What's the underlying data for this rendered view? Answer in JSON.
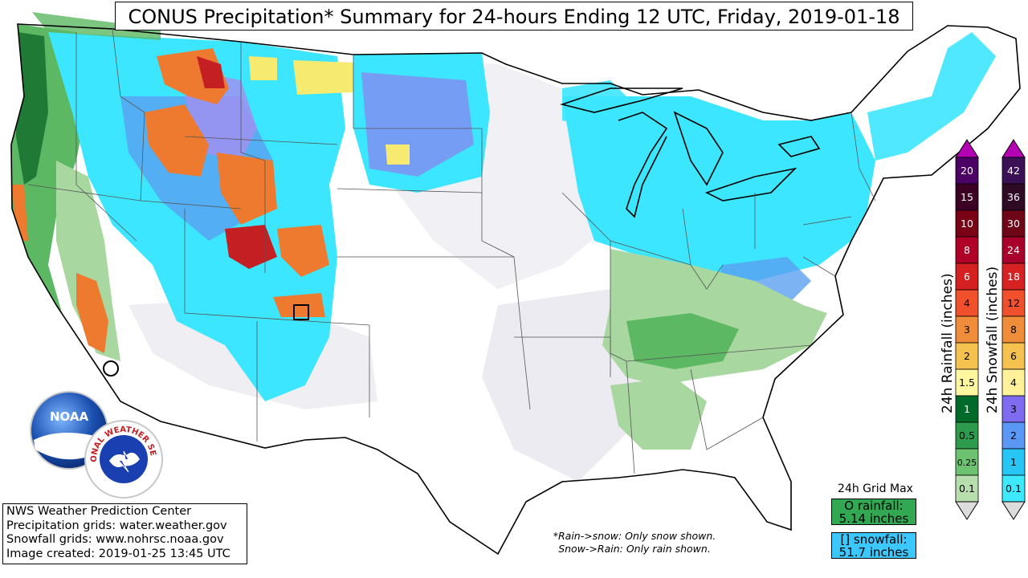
{
  "title": "CONUS Precipitation* Summary for 24-hours Ending 12 UTC, Friday, 2019-01-18",
  "credits": {
    "line1": "NWS Weather Prediction Center",
    "line2": "Precipitation grids: water.weather.gov",
    "line3": "Snowfall grids: www.nohrsc.noaa.gov",
    "line4": "Image created: 2019-01-25 13:45 UTC"
  },
  "footnote": {
    "line1": "*Rain->snow: Only snow shown.",
    "line2": "Snow->Rain: Only rain shown."
  },
  "grid_max": {
    "title": "24h Grid Max",
    "rain_label": "O rainfall:",
    "rain_value": "5.14 inches",
    "snow_label": "[] snowfall:",
    "snow_value": "51.7 inches"
  },
  "logos": {
    "noaa": "NOAA",
    "nws": "NATIONAL WEATHER SERVICE"
  },
  "rain_legend": {
    "label": "24h Rainfall (inches)",
    "levels": [
      "20",
      "15",
      "10",
      "8",
      "6",
      "4",
      "3",
      "2",
      "1.5",
      "1",
      "0.5",
      "0.25",
      "0.1"
    ],
    "colors": [
      "#4b0064",
      "#3d0025",
      "#7a0015",
      "#b10028",
      "#d42020",
      "#f0502b",
      "#f08d3a",
      "#f5c24f",
      "#fff6a0",
      "#006a2b",
      "#2e9a4b",
      "#6dc271",
      "#b6dfad"
    ],
    "top_color": "#b300b3",
    "bottom_color": "#dcdcdc"
  },
  "snow_legend": {
    "label": "24h Snowfall (inches)",
    "levels": [
      "42",
      "36",
      "30",
      "24",
      "18",
      "12",
      "8",
      "6",
      "4",
      "3",
      "2",
      "1",
      "0.1"
    ],
    "colors": [
      "#3b1156",
      "#2e0a23",
      "#6e0618",
      "#a8002a",
      "#d62223",
      "#f0502b",
      "#f08d3a",
      "#f5c24f",
      "#fff29a",
      "#7f6bf0",
      "#5b97f5",
      "#27c6f5",
      "#3ce9ff"
    ],
    "top_color": "#b300b3",
    "bottom_color": "#dcdcdc"
  },
  "colors": {
    "snow_light": "#3de6ff",
    "snow_mid": "#5aa0f0",
    "rain_light": "#a8d8a0",
    "rain_mid": "#5cb863",
    "rain_dark": "#1f7a36",
    "trace": "#e4e4ec",
    "heavy_orange": "#ee7a30",
    "heavy_red": "#c41f22",
    "yellow": "#f7ea70"
  }
}
